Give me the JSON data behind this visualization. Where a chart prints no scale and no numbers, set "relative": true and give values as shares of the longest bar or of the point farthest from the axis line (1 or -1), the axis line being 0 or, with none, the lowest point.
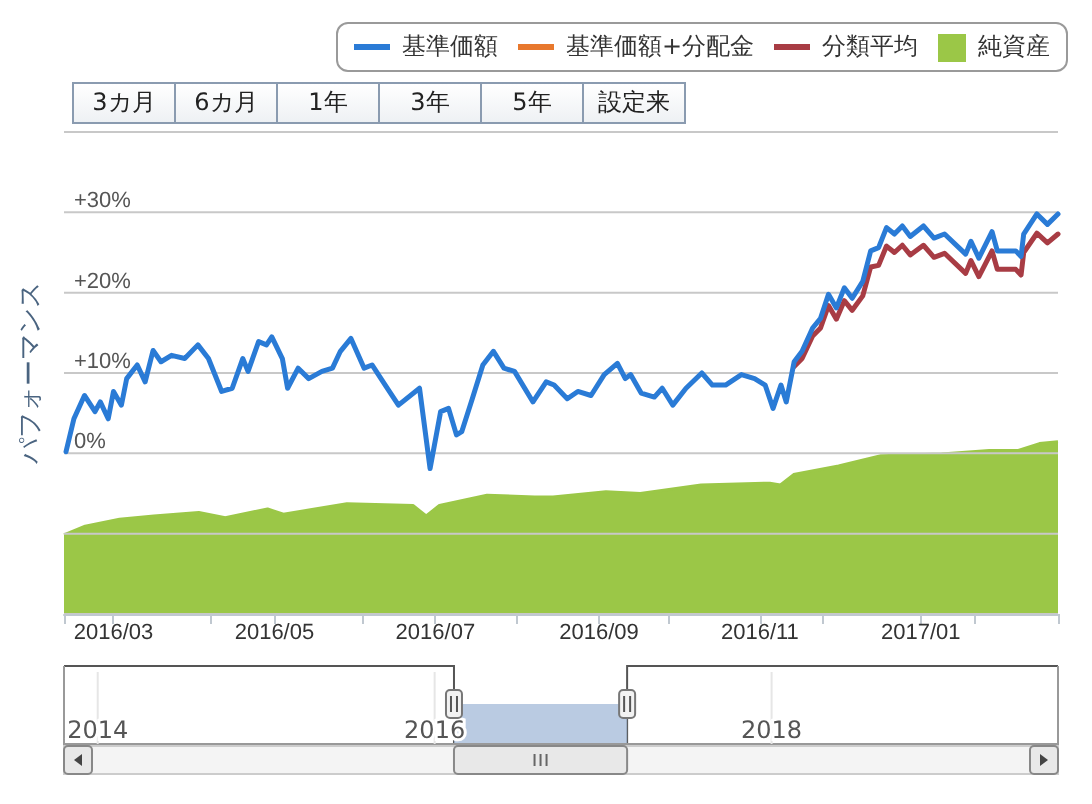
{
  "chart_data": [
    {
      "type": "line",
      "ylabel": "パフォーマンス",
      "legend": "top right",
      "grid": "y",
      "marker": "none",
      "line_style": "solid",
      "xlim": [
        "2016-02-12",
        "2017-02-22"
      ],
      "xticks": [
        {
          "value": "2016-03-01",
          "label": "2016/03"
        },
        {
          "value": "2016-05-01",
          "label": "2016/05"
        },
        {
          "value": "2016-07-01",
          "label": "2016/07"
        },
        {
          "value": "2016-09-01",
          "label": "2016/09"
        },
        {
          "value": "2016-11-01",
          "label": "2016/11"
        },
        {
          "value": "2017-01-01",
          "label": "2017/01"
        }
      ],
      "ylim": [
        -20,
        40
      ],
      "yticks": [
        {
          "value": -20,
          "label": null
        },
        {
          "value": -10,
          "label": null
        },
        {
          "value": 0,
          "label": "0%"
        },
        {
          "value": 10,
          "label": "+10%"
        },
        {
          "value": 20,
          "label": "+20%"
        },
        {
          "value": 30,
          "label": "+30%"
        },
        {
          "value": 40,
          "label": null
        }
      ],
      "x2lim": [
        2013.8,
        2019.7
      ],
      "x2ticks": [
        2014,
        2016,
        2018
      ],
      "x": [
        "2016-02-12",
        "2016-02-15",
        "2016-02-19",
        "2016-02-23",
        "2016-02-25",
        "2016-02-28",
        "2016-03-01",
        "2016-03-04",
        "2016-03-06",
        "2016-03-10",
        "2016-03-13",
        "2016-03-16",
        "2016-03-19",
        "2016-03-23",
        "2016-03-28",
        "2016-04-02",
        "2016-04-06",
        "2016-04-11",
        "2016-04-15",
        "2016-04-19",
        "2016-04-21",
        "2016-04-25",
        "2016-04-28",
        "2016-04-30",
        "2016-05-04",
        "2016-05-06",
        "2016-05-10",
        "2016-05-14",
        "2016-05-19",
        "2016-05-23",
        "2016-05-26",
        "2016-05-30",
        "2016-06-04",
        "2016-06-07",
        "2016-06-12",
        "2016-06-17",
        "2016-06-25",
        "2016-06-29",
        "2016-07-03",
        "2016-07-06",
        "2016-07-09",
        "2016-07-11",
        "2016-07-15",
        "2016-07-19",
        "2016-07-23",
        "2016-07-27",
        "2016-07-31",
        "2016-08-07",
        "2016-08-12",
        "2016-08-15",
        "2016-08-20",
        "2016-08-24",
        "2016-08-29",
        "2016-09-03",
        "2016-09-08",
        "2016-09-11",
        "2016-09-13",
        "2016-09-17",
        "2016-09-22",
        "2016-09-25",
        "2016-09-29",
        "2016-10-04",
        "2016-10-10",
        "2016-10-14",
        "2016-10-19",
        "2016-10-25",
        "2016-10-30",
        "2016-11-03",
        "2016-11-06",
        "2016-11-09",
        "2016-11-11",
        "2016-11-14",
        "2016-11-17",
        "2016-11-21",
        "2016-11-24",
        "2016-11-27",
        "2016-11-30",
        "2016-12-03",
        "2016-12-06",
        "2016-12-10",
        "2016-12-13",
        "2016-12-16",
        "2016-12-19",
        "2016-12-22",
        "2016-12-25",
        "2016-12-28",
        "2017-01-02",
        "2017-01-06",
        "2017-01-10",
        "2017-01-18",
        "2017-01-20",
        "2017-01-23",
        "2017-01-28",
        "2017-01-30",
        "2017-02-06",
        "2017-02-08",
        "2017-02-09",
        "2017-02-14",
        "2017-02-18",
        "2017-02-22"
      ],
      "series": [
        {
          "name": "基準価額",
          "color": "#2a7bd6",
          "values": [
            0.2,
            4.3,
            7.2,
            5.2,
            6.4,
            4.3,
            7.7,
            6,
            9.3,
            11,
            8.9,
            12.8,
            11.4,
            12.2,
            11.8,
            13.5,
            11.8,
            7.7,
            8.1,
            11.8,
            10.2,
            13.9,
            13.5,
            14.5,
            11.8,
            8.1,
            10.6,
            9.3,
            10.2,
            10.6,
            12.7,
            14.3,
            10.6,
            11,
            8.5,
            6,
            8.1,
            -1.9,
            5.2,
            5.6,
            2.3,
            2.7,
            6.8,
            11,
            12.7,
            10.6,
            10.2,
            6.4,
            8.9,
            8.5,
            6.8,
            7.7,
            7.2,
            9.8,
            11.2,
            9.3,
            9.8,
            7.5,
            7,
            8.1,
            6,
            8.1,
            10,
            8.5,
            8.5,
            9.8,
            9.3,
            8.5,
            5.6,
            8.5,
            6.4,
            11.4,
            12.7,
            15.6,
            16.8,
            19.8,
            18.1,
            20.6,
            19.3,
            21.4,
            25.2,
            25.6,
            28.1,
            27.3,
            28.3,
            27,
            28.3,
            26.8,
            27.3,
            24.8,
            26.4,
            24.3,
            27.6,
            25.2,
            25.2,
            24.5,
            27.3,
            29.8,
            28.5,
            29.8
          ]
        },
        {
          "name": "基準価額+分配金",
          "color": "#e8782d",
          "values": [
            null,
            null,
            null,
            null,
            null,
            null,
            null,
            null,
            null,
            null,
            null,
            null,
            null,
            null,
            null,
            null,
            null,
            null,
            null,
            null,
            null,
            null,
            null,
            null,
            null,
            null,
            null,
            null,
            null,
            null,
            null,
            null,
            null,
            null,
            null,
            null,
            null,
            null,
            null,
            null,
            null,
            null,
            null,
            null,
            null,
            null,
            null,
            null,
            null,
            null,
            null,
            null,
            null,
            null,
            null,
            null,
            null,
            null,
            null,
            null,
            null,
            null,
            null,
            null,
            null,
            null,
            null,
            null,
            null,
            null,
            null,
            null,
            null,
            null,
            null,
            null,
            null,
            null,
            null,
            null,
            null,
            null,
            null,
            null,
            null,
            null,
            null,
            null,
            null,
            null,
            null,
            null,
            null,
            null,
            null,
            null,
            null,
            null,
            null,
            null
          ]
        },
        {
          "name": "分類平均",
          "color": "#a83c44",
          "values": [
            null,
            null,
            null,
            null,
            null,
            null,
            null,
            null,
            null,
            null,
            null,
            null,
            null,
            null,
            null,
            null,
            null,
            null,
            null,
            null,
            null,
            null,
            null,
            null,
            null,
            null,
            null,
            null,
            null,
            null,
            null,
            null,
            null,
            null,
            null,
            null,
            null,
            null,
            null,
            null,
            null,
            null,
            null,
            null,
            null,
            null,
            null,
            null,
            null,
            null,
            null,
            null,
            null,
            null,
            null,
            null,
            null,
            null,
            null,
            null,
            null,
            null,
            null,
            null,
            null,
            null,
            null,
            null,
            null,
            null,
            null,
            10.8,
            11.8,
            14.6,
            15.6,
            18.4,
            16.7,
            19,
            17.8,
            19.6,
            23.2,
            23.4,
            25.8,
            25,
            25.9,
            24.7,
            25.9,
            24.4,
            24.9,
            22.4,
            24,
            22,
            25.2,
            22.9,
            22.9,
            22.2,
            25,
            27.4,
            26.2,
            27.3
          ]
        }
      ],
      "annotations": [
        "3カ月",
        "6カ月",
        "1年",
        "3年",
        "5年",
        "設定来"
      ]
    },
    {
      "type": "area",
      "relative": true,
      "legend": "top right",
      "xlim": [
        "2016-02-12",
        "2017-02-22"
      ],
      "x": [
        "2016-02-12",
        "2016-02-20",
        "2016-03-04",
        "2016-03-17",
        "2016-04-03",
        "2016-04-13",
        "2016-04-29",
        "2016-05-05",
        "2016-05-29",
        "2016-06-23",
        "2016-06-28",
        "2016-07-03",
        "2016-07-21",
        "2016-08-08",
        "2016-08-15",
        "2016-09-04",
        "2016-09-17",
        "2016-10-10",
        "2016-11-05",
        "2016-11-09",
        "2016-11-14",
        "2016-12-01",
        "2016-12-17",
        "2017-01-09",
        "2017-01-27",
        "2017-02-07",
        "2017-02-15",
        "2017-02-22"
      ],
      "series": [
        {
          "name": "純資産",
          "color": "#9bc747",
          "values": [
            0.46,
            0.51,
            0.55,
            0.57,
            0.59,
            0.56,
            0.61,
            0.58,
            0.64,
            0.63,
            0.57,
            0.63,
            0.69,
            0.68,
            0.68,
            0.71,
            0.7,
            0.75,
            0.76,
            0.75,
            0.81,
            0.86,
            0.92,
            0.93,
            0.95,
            0.95,
            0.99,
            1
          ]
        }
      ]
    }
  ]
}
